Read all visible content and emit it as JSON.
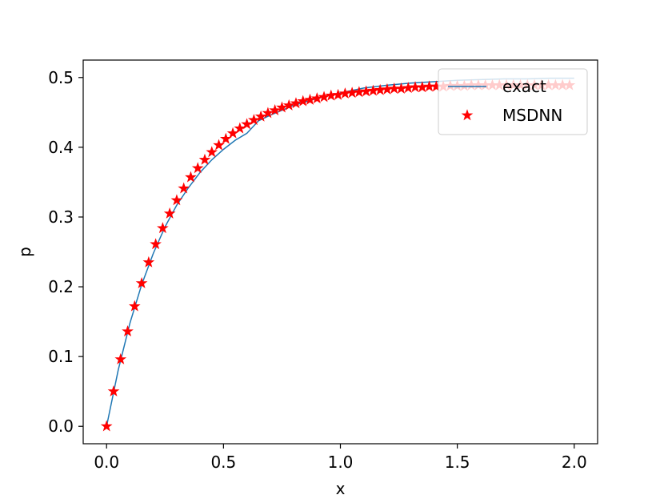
{
  "chart_data": {
    "type": "line",
    "title": "",
    "xlabel": "x",
    "ylabel": "p",
    "xlim": [
      -0.1,
      2.1
    ],
    "ylim": [
      -0.025,
      0.525
    ],
    "grid": false,
    "legend_position": "top-right",
    "x_ticks": [
      "0.0",
      "0.5",
      "1.0",
      "1.5",
      "2.0"
    ],
    "y_ticks": [
      "0.0",
      "0.1",
      "0.2",
      "0.3",
      "0.4",
      "0.5"
    ],
    "series": [
      {
        "name": "exact",
        "style": "line",
        "color": "#1f77b4",
        "x": [
          0.0,
          0.05,
          0.1,
          0.15,
          0.2,
          0.25,
          0.3,
          0.35,
          0.4,
          0.45,
          0.5,
          0.55,
          0.6,
          0.65,
          0.7,
          0.75,
          0.8,
          0.85,
          0.9,
          0.95,
          1.0,
          1.1,
          1.2,
          1.3,
          1.4,
          1.5,
          1.6,
          1.7,
          1.8,
          1.9,
          2.0
        ],
        "y": [
          0.0,
          0.081,
          0.148,
          0.203,
          0.248,
          0.286,
          0.317,
          0.342,
          0.364,
          0.382,
          0.397,
          0.41,
          0.42,
          0.438,
          0.446,
          0.453,
          0.46,
          0.465,
          0.47,
          0.474,
          0.478,
          0.485,
          0.489,
          0.492,
          0.494,
          0.496,
          0.497,
          0.498,
          0.498,
          0.499,
          0.499
        ]
      },
      {
        "name": "MSDNN",
        "style": "marker",
        "marker": "star",
        "color": "#ff0000",
        "x": [
          0.0,
          0.03,
          0.06,
          0.09,
          0.12,
          0.15,
          0.18,
          0.21,
          0.24,
          0.27,
          0.3,
          0.33,
          0.36,
          0.39,
          0.42,
          0.45,
          0.48,
          0.51,
          0.54,
          0.57,
          0.6,
          0.63,
          0.66,
          0.69,
          0.72,
          0.75,
          0.78,
          0.81,
          0.84,
          0.87,
          0.9,
          0.93,
          0.96,
          0.99,
          1.02,
          1.05,
          1.08,
          1.11,
          1.14,
          1.17,
          1.2,
          1.23,
          1.26,
          1.29,
          1.32,
          1.35,
          1.38,
          1.41,
          1.44,
          1.47,
          1.5,
          1.53,
          1.56,
          1.59,
          1.62,
          1.65,
          1.68,
          1.71,
          1.74,
          1.77,
          1.8,
          1.83,
          1.86,
          1.89,
          1.92,
          1.95,
          1.98
        ],
        "y": [
          0.0,
          0.05,
          0.096,
          0.136,
          0.172,
          0.205,
          0.235,
          0.261,
          0.284,
          0.305,
          0.324,
          0.341,
          0.357,
          0.37,
          0.382,
          0.393,
          0.403,
          0.412,
          0.42,
          0.427,
          0.433,
          0.439,
          0.444,
          0.449,
          0.453,
          0.457,
          0.46,
          0.463,
          0.466,
          0.468,
          0.47,
          0.472,
          0.474,
          0.475,
          0.477,
          0.478,
          0.479,
          0.48,
          0.481,
          0.482,
          0.483,
          0.484,
          0.484,
          0.485,
          0.486,
          0.486,
          0.487,
          0.487,
          0.487,
          0.488,
          0.488,
          0.488,
          0.489,
          0.489,
          0.489,
          0.489,
          0.489,
          0.489,
          0.489,
          0.489,
          0.489,
          0.489,
          0.489,
          0.489,
          0.489,
          0.489,
          0.489
        ]
      }
    ]
  }
}
